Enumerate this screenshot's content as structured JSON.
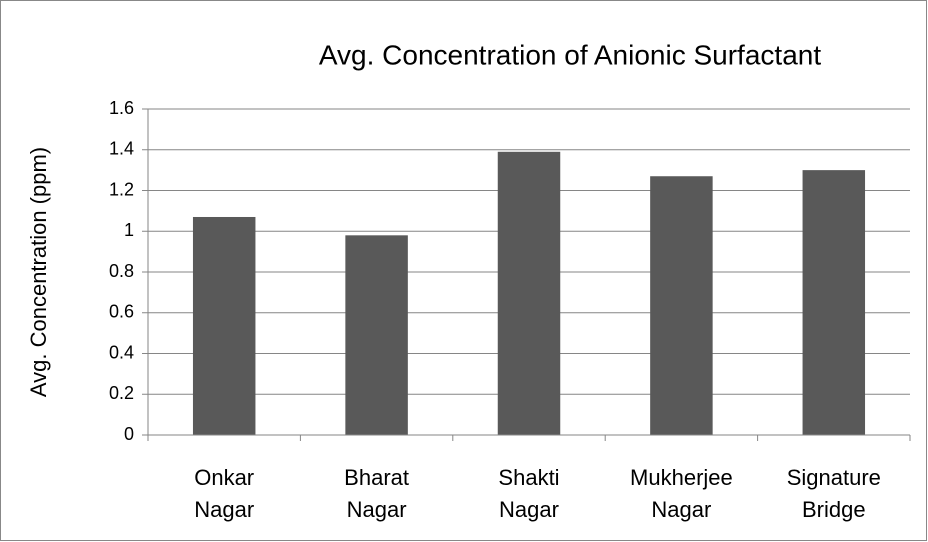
{
  "chart_data": {
    "type": "bar",
    "title": "Avg. Concentration of Anionic Surfactant",
    "y_label": "Avg. Concentration (ppm)",
    "categories": [
      "Onkar Nagar",
      "Bharat Nagar",
      "Shakti Nagar",
      "Mukherjee Nagar",
      "Signature Bridge"
    ],
    "values": [
      1.07,
      0.98,
      1.39,
      1.27,
      1.3
    ],
    "color": "#595959",
    "ylim": [
      0,
      1.6
    ],
    "yticks": [
      0,
      0.2,
      0.4,
      0.6,
      0.8,
      1,
      1.2,
      1.4,
      1.6
    ],
    "grid": true
  }
}
